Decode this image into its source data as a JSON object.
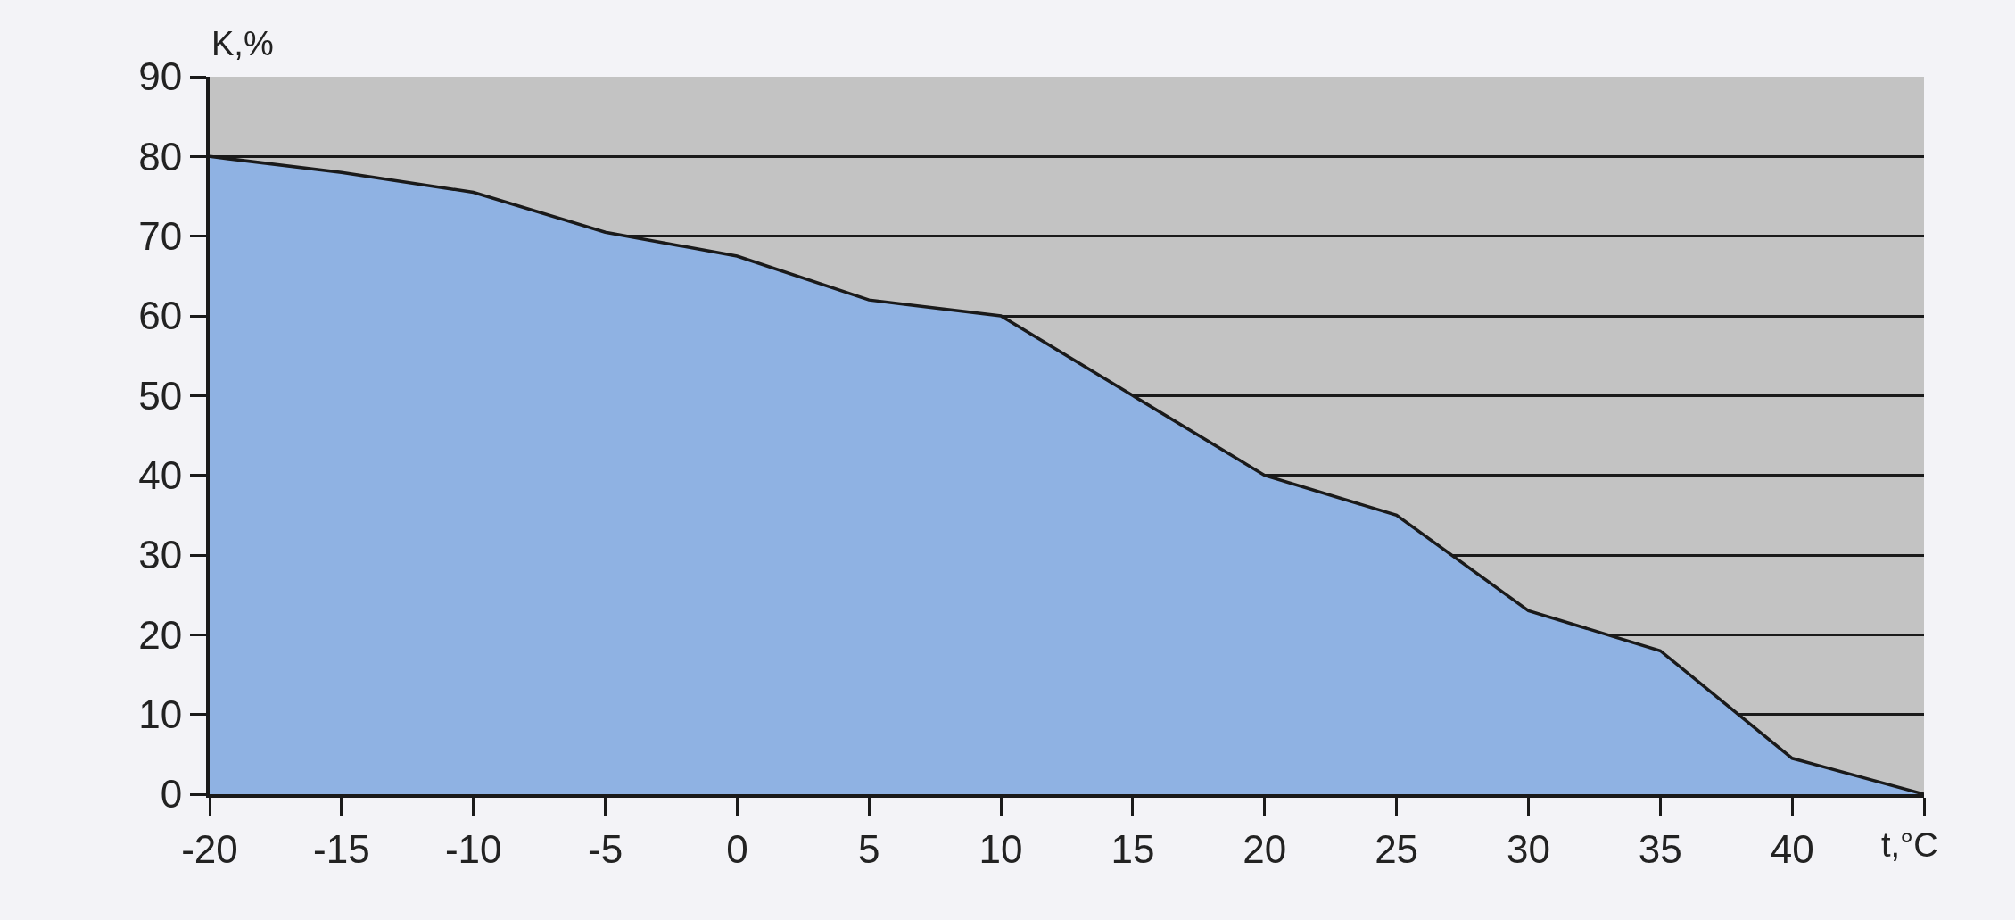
{
  "chart_data": {
    "type": "area",
    "xlabel": "t,°C",
    "ylabel": "K,%",
    "x": [
      -20,
      -15,
      -10,
      -5,
      0,
      5,
      10,
      15,
      20,
      25,
      30,
      35,
      40,
      45
    ],
    "values": [
      80,
      78,
      75.5,
      70.5,
      67.5,
      62,
      60,
      50,
      40,
      35,
      23,
      18,
      4.5,
      0
    ],
    "color": "#8fb2e3",
    "xlim": [
      -20,
      45
    ],
    "xticks": [
      -20,
      -15,
      -10,
      -5,
      0,
      5,
      10,
      15,
      20,
      25,
      30,
      35,
      40,
      {
        "value": 45,
        "label": null
      }
    ],
    "ylim": [
      0,
      90
    ],
    "yticks": [
      0,
      10,
      20,
      30,
      40,
      50,
      60,
      70,
      80,
      90
    ],
    "grid": "y"
  }
}
